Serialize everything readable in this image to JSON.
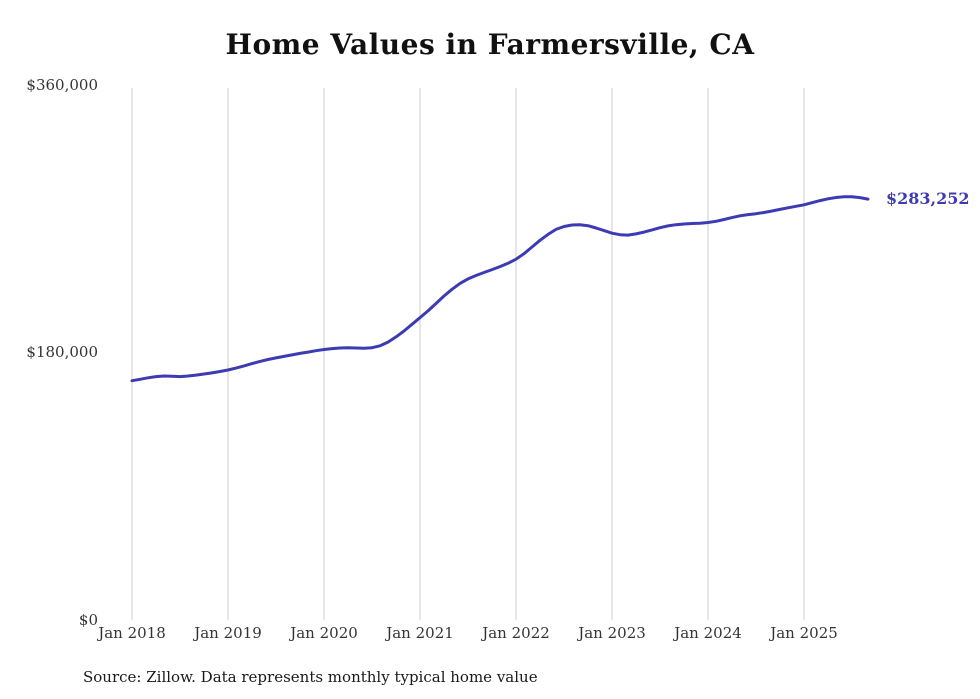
{
  "chart_data": {
    "type": "line",
    "title": "Home Values in Farmersville, CA",
    "xlabel": "",
    "ylabel": "",
    "ylim": [
      0,
      360000
    ],
    "grid": "vertical-only",
    "legend": "none",
    "line_color": "#3d3bb3",
    "x_tick_labels": [
      "Jan 2018",
      "Jan 2019",
      "Jan 2020",
      "Jan 2021",
      "Jan 2022",
      "Jan 2023",
      "Jan 2024",
      "Jan 2025"
    ],
    "y_tick_labels": [
      "$360,000",
      "$180,000",
      "$0"
    ],
    "end_label": "$283,252",
    "end_value": 283252,
    "series": [
      {
        "name": "Monthly typical home value",
        "start_month": "2018-01",
        "interval": "monthly",
        "values": [
          161000,
          162000,
          163000,
          163800,
          164200,
          164000,
          163800,
          164200,
          164800,
          165500,
          166300,
          167200,
          168200,
          169500,
          171000,
          172500,
          174000,
          175300,
          176400,
          177400,
          178400,
          179400,
          180300,
          181200,
          182000,
          182600,
          183000,
          183200,
          183000,
          182800,
          183200,
          184500,
          187000,
          190500,
          194500,
          199000,
          203500,
          208000,
          213000,
          218000,
          222500,
          226500,
          229500,
          231800,
          233800,
          235800,
          237800,
          240000,
          242800,
          246500,
          251000,
          255500,
          259500,
          262800,
          264800,
          265800,
          266000,
          265300,
          263800,
          262000,
          260300,
          259300,
          259000,
          259800,
          261000,
          262500,
          264000,
          265200,
          266000,
          266500,
          266800,
          267000,
          267500,
          268300,
          269500,
          270800,
          272000,
          272800,
          273400,
          274200,
          275200,
          276300,
          277400,
          278400,
          279400,
          280800,
          282200,
          283400,
          284300,
          284800,
          284800,
          284200,
          283252
        ]
      }
    ],
    "source_note": "Source: Zillow. Data represents monthly typical home value"
  }
}
